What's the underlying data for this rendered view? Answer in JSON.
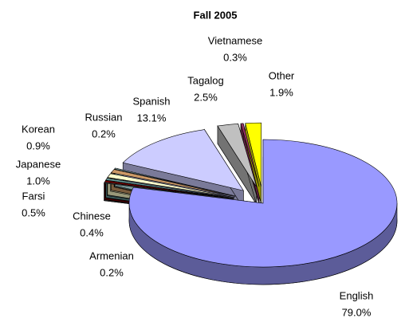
{
  "chart_data": {
    "type": "pie",
    "title": "Fall 2005",
    "categories": [
      "English",
      "Armenian",
      "Chinese",
      "Farsi",
      "Japanese",
      "Korean",
      "Russian",
      "Spanish",
      "Tagalog",
      "Vietnamese",
      "Other"
    ],
    "values": [
      79.0,
      0.2,
      0.4,
      0.5,
      1.0,
      0.9,
      0.2,
      13.1,
      2.5,
      0.3,
      1.9
    ],
    "value_labels": [
      "79.0%",
      "0.2%",
      "0.4%",
      "0.5%",
      "1.0%",
      "0.9%",
      "0.2%",
      "13.1%",
      "2.5%",
      "0.3%",
      "1.9%"
    ],
    "colors": [
      "#9999ff",
      "#808080",
      "#800000",
      "#669999",
      "#ffffcc",
      "#cc9966",
      "#ccffff",
      "#ccccff",
      "#c0c0c0",
      "#993366",
      "#ffff00"
    ]
  }
}
